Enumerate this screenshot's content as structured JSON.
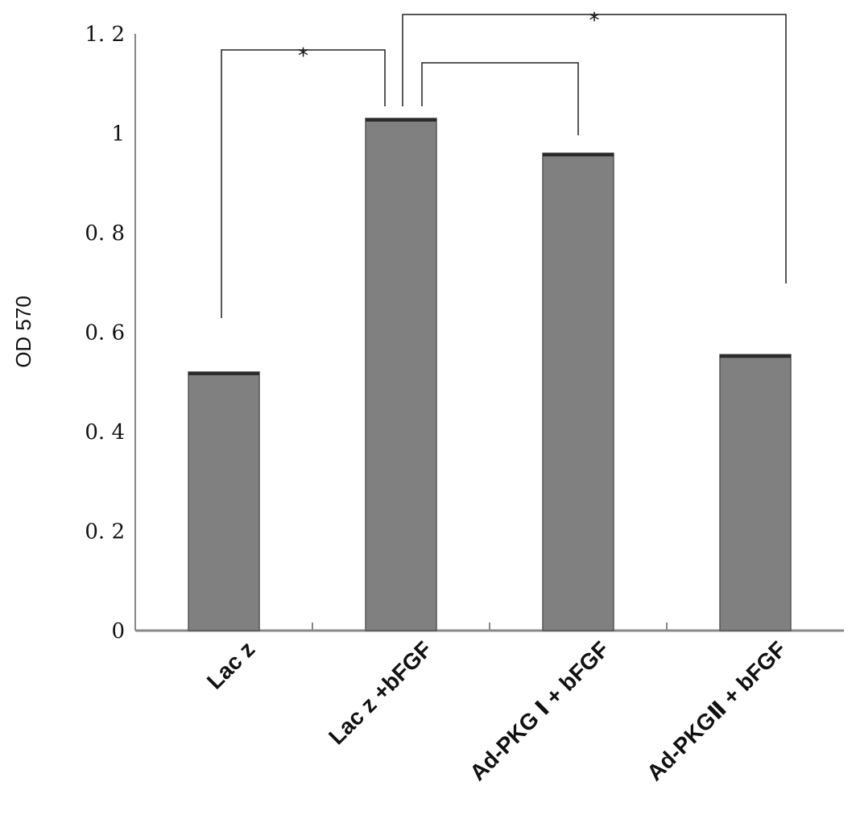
{
  "chart_data": {
    "type": "bar",
    "categories": [
      "Lac z",
      "Lac z +bFGF",
      "Ad-PKG Ⅰ + bFGF",
      "Ad-PKGⅡ + bFGF"
    ],
    "values": [
      0.52,
      1.03,
      0.96,
      0.555
    ],
    "ylabel": "OD 570",
    "xlabel": "",
    "ylim": [
      0,
      1.2
    ],
    "yticks": [
      0,
      0.2,
      0.4,
      0.6,
      0.8,
      1,
      1.2
    ],
    "ytick_labels": [
      "0",
      "0. 2",
      "0. 4",
      "0. 6",
      "0. 8",
      "1",
      "1. 2"
    ],
    "grid": false,
    "legend": "none",
    "bar_color": "#808080",
    "bar_top_color": "#2a2a2a",
    "axis_color": "#888888",
    "significance": [
      {
        "from": 0,
        "to": 1,
        "label": "*"
      },
      {
        "from": 1,
        "to": 2,
        "label": ""
      },
      {
        "from": 1,
        "to": 3,
        "label": "*"
      }
    ]
  }
}
